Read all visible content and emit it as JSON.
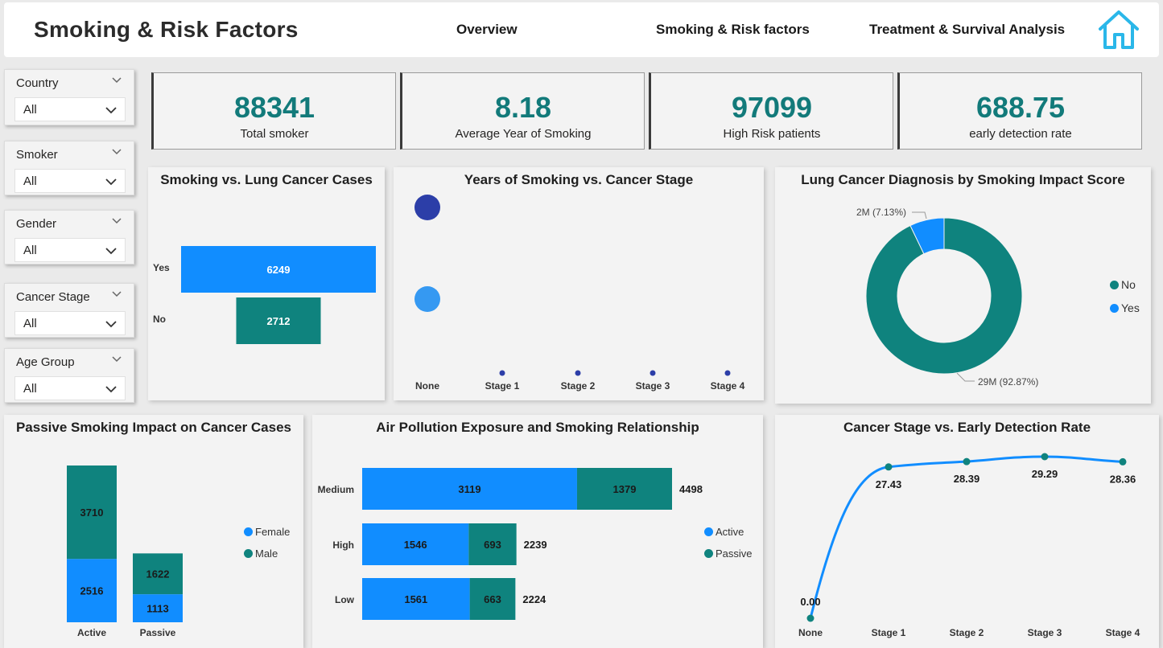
{
  "header": {
    "title": "Smoking & Risk Factors",
    "nav": [
      "Overview",
      "Smoking & Risk factors",
      "Treatment & Survival Analysis"
    ],
    "home_icon": "home-icon"
  },
  "colors": {
    "teal": "#0f837e",
    "blue": "#118dff",
    "navy": "#2c3ea8",
    "light_blue": "#3599f2",
    "kpi_text": "#127a7a"
  },
  "slicers": [
    {
      "label": "Country",
      "value": "All"
    },
    {
      "label": "Smoker",
      "value": "All"
    },
    {
      "label": "Gender",
      "value": "All"
    },
    {
      "label": "Cancer Stage",
      "value": "All"
    },
    {
      "label": "Age Group",
      "value": "All"
    }
  ],
  "kpis": [
    {
      "value": "88341",
      "label": "Total smoker"
    },
    {
      "value": "8.18",
      "label": "Average Year of Smoking"
    },
    {
      "value": "97099",
      "label": "High Risk patients"
    },
    {
      "value": "688.75",
      "label": "early detection rate"
    }
  ],
  "chart_data": [
    {
      "id": "smoking-vs-cancer",
      "type": "bar",
      "title": "Smoking vs. Lung Cancer Cases",
      "categories": [
        "Yes",
        "No"
      ],
      "values": [
        6249,
        2712
      ]
    },
    {
      "id": "years-vs-stage",
      "type": "scatter",
      "title": "Years of Smoking vs. Cancer Stage",
      "categories": [
        "None",
        "Stage 1",
        "Stage 2",
        "Stage 3",
        "Stage 4"
      ]
    },
    {
      "id": "diagnosis-donut",
      "type": "pie",
      "title": "Lung Cancer Diagnosis by Smoking Impact Score",
      "slices": [
        {
          "name": "No",
          "percent": 92.87,
          "label": "29M (92.87%)"
        },
        {
          "name": "Yes",
          "percent": 7.13,
          "label": "2M (7.13%)"
        }
      ],
      "legend": [
        "No",
        "Yes"
      ]
    },
    {
      "id": "passive-smoking",
      "type": "bar",
      "title": "Passive Smoking Impact on Cancer Cases",
      "categories": [
        "Active",
        "Passive"
      ],
      "series": [
        {
          "name": "Female",
          "values": [
            2516,
            1113
          ]
        },
        {
          "name": "Male",
          "values": [
            3710,
            1622
          ]
        }
      ]
    },
    {
      "id": "air-pollution",
      "type": "bar",
      "title": "Air Pollution Exposure and Smoking Relationship",
      "categories": [
        "Medium",
        "High",
        "Low"
      ],
      "series": [
        {
          "name": "Active",
          "values": [
            3119,
            1546,
            1561
          ]
        },
        {
          "name": "Passive",
          "values": [
            1379,
            693,
            663
          ]
        }
      ],
      "totals": [
        4498,
        2239,
        2224
      ]
    },
    {
      "id": "early-detection",
      "type": "line",
      "title": "Cancer Stage vs. Early Detection Rate",
      "categories": [
        "None",
        "Stage 1",
        "Stage 2",
        "Stage 3",
        "Stage 4"
      ],
      "values": [
        0.0,
        27.43,
        28.39,
        29.29,
        28.36
      ],
      "value_labels": [
        "0.00",
        "27.43",
        "28.39",
        "29.29",
        "28.36"
      ]
    }
  ]
}
